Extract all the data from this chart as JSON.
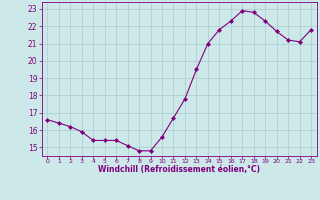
{
  "x": [
    0,
    1,
    2,
    3,
    4,
    5,
    6,
    7,
    8,
    9,
    10,
    11,
    12,
    13,
    14,
    15,
    16,
    17,
    18,
    19,
    20,
    21,
    22,
    23
  ],
  "y": [
    16.6,
    16.4,
    16.2,
    15.9,
    15.4,
    15.4,
    15.4,
    15.1,
    14.8,
    14.8,
    15.6,
    16.7,
    17.8,
    19.5,
    21.0,
    21.8,
    22.3,
    22.9,
    22.8,
    22.3,
    21.7,
    21.2,
    21.1,
    21.8
  ],
  "line_color": "#800080",
  "marker": "D",
  "marker_size": 2,
  "bg_color": "#cce8e8",
  "grid_color": "#aacccc",
  "xlabel": "Windchill (Refroidissement éolien,°C)",
  "xlabel_color": "#800080",
  "tick_color": "#800080",
  "ylim": [
    14.5,
    23.4
  ],
  "yticks": [
    15,
    16,
    17,
    18,
    19,
    20,
    21,
    22,
    23
  ],
  "xticks": [
    0,
    1,
    2,
    3,
    4,
    5,
    6,
    7,
    8,
    9,
    10,
    11,
    12,
    13,
    14,
    15,
    16,
    17,
    18,
    19,
    20,
    21,
    22,
    23
  ],
  "spine_color": "#800080",
  "figsize": [
    3.2,
    2.0
  ],
  "dpi": 100
}
